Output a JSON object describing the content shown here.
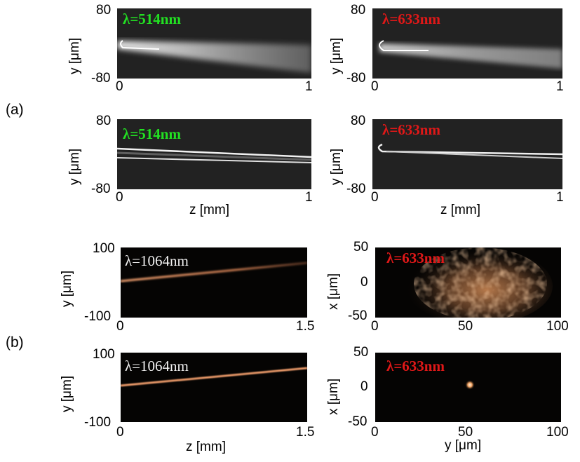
{
  "section_labels": {
    "a": "(a)",
    "b": "(b)"
  },
  "colors": {
    "green_label": "#22e022",
    "red_label": "#e01818",
    "white_label": "#f2f2f2",
    "beam_orange": "#f0a070"
  },
  "panels": {
    "a1": {
      "wavelength": "λ=514nm",
      "ylabel": "y [μm]",
      "yticks": [
        "80",
        "-80"
      ],
      "xticks": [
        "0",
        "1"
      ]
    },
    "a2": {
      "wavelength": "λ=633nm",
      "ylabel": "y [μm]",
      "yticks": [
        "80",
        "-80"
      ],
      "xticks": [
        "0",
        "1"
      ]
    },
    "a3": {
      "wavelength": "λ=514nm",
      "ylabel": "y [μm]",
      "yticks": [
        "80",
        "-80"
      ],
      "xticks": [
        "0",
        "1"
      ],
      "xlabel": "z [mm]"
    },
    "a4": {
      "wavelength": "λ=633nm",
      "ylabel": "y [μm]",
      "yticks": [
        "80",
        "-80"
      ],
      "xticks": [
        "0",
        "1"
      ],
      "xlabel": "z [mm]"
    },
    "b1": {
      "wavelength": "λ=1064nm",
      "ylabel": "y [μm]",
      "yticks": [
        "100",
        "-100"
      ],
      "xticks": [
        "0",
        "1.5"
      ]
    },
    "b2": {
      "wavelength": "λ=633nm",
      "ylabel": "x [μm]",
      "yticks": [
        "50",
        "0",
        "-50"
      ],
      "xticks": [
        "0",
        "50",
        "100"
      ]
    },
    "b3": {
      "wavelength": "λ=1064nm",
      "ylabel": "y [μm]",
      "yticks": [
        "100",
        "-100"
      ],
      "xticks": [
        "0",
        "1.5"
      ],
      "xlabel": "z [mm]"
    },
    "b4": {
      "wavelength": "λ=633nm",
      "ylabel": "x [μm]",
      "yticks": [
        "50",
        "0",
        "-50"
      ],
      "xticks": [
        "0",
        "50",
        "100"
      ],
      "xlabel": "y [μm]"
    }
  }
}
